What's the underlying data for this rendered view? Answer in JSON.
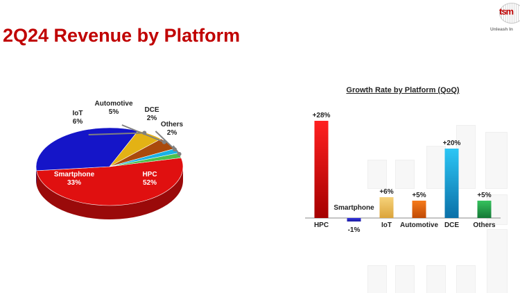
{
  "page": {
    "title": "2Q24 Revenue by Platform"
  },
  "logo": {
    "text": "tsm",
    "slogan": "Unleash In"
  },
  "chart_data": [
    {
      "type": "pie",
      "title": "",
      "slices": [
        {
          "name": "HPC",
          "value": 52,
          "label": "52%",
          "color": "#e01010",
          "side": "#9a0a0a",
          "label_color": "#ffffff"
        },
        {
          "name": "Smartphone",
          "value": 33,
          "label": "33%",
          "color": "#1515c8",
          "side": "#0a0a78",
          "label_color": "#ffffff"
        },
        {
          "name": "IoT",
          "value": 6,
          "label": "6%",
          "color": "#e3b215",
          "side": "#8e6d08",
          "label_color": "#222222"
        },
        {
          "name": "Automotive",
          "value": 5,
          "label": "5%",
          "color": "#aa4a0c",
          "side": "#5e2906",
          "label_color": "#222222"
        },
        {
          "name": "DCE",
          "value": 2,
          "label": "2%",
          "color": "#19b2e6",
          "side": "#0c6688",
          "label_color": "#222222"
        },
        {
          "name": "Others",
          "value": 2,
          "label": "2%",
          "color": "#4cc04c",
          "side": "#237523",
          "label_color": "#222222"
        }
      ]
    },
    {
      "type": "bar",
      "title": "Growth Rate by Platform (QoQ)",
      "categories": [
        "HPC",
        "Smartphone",
        "IoT",
        "Automotive",
        "DCE",
        "Others"
      ],
      "values": [
        28,
        -1,
        6,
        5,
        20,
        5
      ],
      "value_labels": [
        "+28%",
        "-1%",
        "+6%",
        "+5%",
        "+20%",
        "+5%"
      ],
      "colors": [
        [
          "#ff2020",
          "#a50000"
        ],
        [
          "#3535e0",
          "#1a1aa0"
        ],
        [
          "#f6d27a",
          "#dba43a"
        ],
        [
          "#f57a1a",
          "#c04a05"
        ],
        [
          "#2cc6f5",
          "#0a70a8"
        ],
        [
          "#36c25e",
          "#147836"
        ]
      ],
      "ylim": [
        -2,
        30
      ]
    }
  ]
}
